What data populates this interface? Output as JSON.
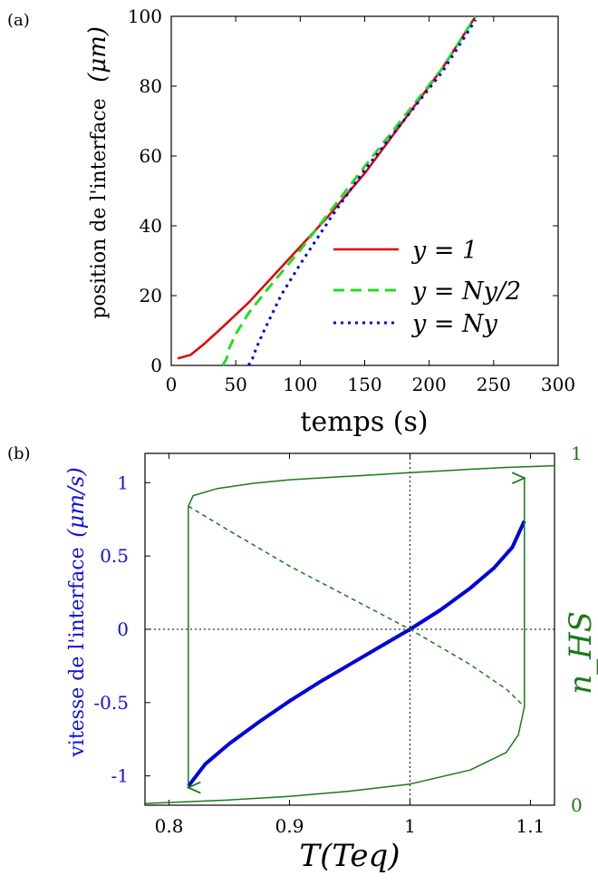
{
  "colors": {
    "red": "#e00000",
    "green_dashed": "#22dd22",
    "blue": "#0000dd",
    "dark_green": "#1a7a1a",
    "blue_axis": "#1010e0"
  },
  "panel_a": {
    "panel_label": "(a)",
    "ylabel": "position de l'interface",
    "ylabel_unit": "(μm)",
    "xlabel": "temps (s)",
    "legend": [
      "y = 1",
      "y = Ny/2",
      "y = Ny"
    ],
    "xticks": [
      "0",
      "50",
      "100",
      "150",
      "200",
      "250",
      "300"
    ],
    "yticks": [
      "0",
      "20",
      "40",
      "60",
      "80",
      "100"
    ]
  },
  "panel_b": {
    "panel_label": "(b)",
    "ylabel": "vitesse de l'interface",
    "ylabel_unit": "(μm/s)",
    "xlabel": "T(Teq)",
    "y2label": "n_HS",
    "xticks": [
      "0.8",
      "0.9",
      "1",
      "1.1"
    ],
    "yticks": [
      "1",
      "0.5",
      "0",
      "-0.5",
      "-1"
    ],
    "y2ticks": [
      "1",
      "0"
    ]
  },
  "chart_data": [
    {
      "type": "line",
      "title": "",
      "xlabel": "temps (s)",
      "ylabel": "position de l'interface (μm)",
      "xlim": [
        0,
        300
      ],
      "ylim": [
        0,
        100
      ],
      "grid": false,
      "legend_position": "bottom-right",
      "series": [
        {
          "name": "y = 1",
          "style": "solid",
          "color": "#e00000",
          "x": [
            5,
            15,
            25,
            40,
            60,
            80,
            100,
            120,
            150,
            180,
            210,
            236
          ],
          "y": [
            2,
            3,
            6,
            11,
            18,
            26,
            34,
            42,
            55,
            70,
            85,
            100
          ]
        },
        {
          "name": "y = Ny/2",
          "style": "dashed",
          "color": "#22dd22",
          "x": [
            40,
            43,
            45,
            50,
            60,
            75,
            100,
            125,
            150,
            180,
            210,
            236
          ],
          "y": [
            0,
            2,
            5,
            9,
            15,
            22,
            33,
            45,
            57,
            71,
            85,
            100
          ]
        },
        {
          "name": "y = Ny",
          "style": "dotted",
          "color": "#0000dd",
          "x": [
            60,
            63,
            66,
            72,
            85,
            100,
            125,
            150,
            180,
            210,
            236
          ],
          "y": [
            0,
            2,
            5,
            10,
            20,
            29,
            43,
            56,
            70,
            84,
            99
          ]
        }
      ]
    },
    {
      "type": "line",
      "title": "",
      "xlabel": "T(Teq)",
      "ylabel": "vitesse de l'interface (μm/s)",
      "y2label": "n_HS",
      "xlim": [
        0.78,
        1.12
      ],
      "ylim": [
        -1.2,
        1.2
      ],
      "y2lim": [
        0,
        1
      ],
      "grid": false,
      "series": [
        {
          "axis": "left",
          "style": "thick solid",
          "color": "#0000dd",
          "x": [
            0.816,
            0.83,
            0.85,
            0.875,
            0.9,
            0.925,
            0.95,
            0.975,
            1.0,
            1.025,
            1.05,
            1.07,
            1.085,
            1.095
          ],
          "y": [
            -1.07,
            -0.92,
            -0.78,
            -0.63,
            -0.49,
            -0.36,
            -0.24,
            -0.12,
            0.0,
            0.13,
            0.28,
            0.42,
            0.56,
            0.74
          ]
        },
        {
          "axis": "right",
          "style": "solid",
          "color": "#1a7a1a",
          "x": [
            0.816,
            0.82,
            0.84,
            0.87,
            0.9,
            0.95,
            1.0,
            1.05,
            1.08,
            1.12
          ],
          "y": [
            0.85,
            0.88,
            0.9,
            0.915,
            0.925,
            0.935,
            0.945,
            0.955,
            0.96,
            0.965
          ]
        },
        {
          "axis": "right",
          "style": "solid",
          "color": "#1a7a1a",
          "x": [
            0.78,
            0.85,
            0.9,
            0.95,
            1.0,
            1.05,
            1.08,
            1.09,
            1.095
          ],
          "y": [
            0.005,
            0.015,
            0.025,
            0.04,
            0.06,
            0.1,
            0.15,
            0.2,
            0.28
          ]
        },
        {
          "axis": "right",
          "style": "dashed",
          "color": "#1a7a1a",
          "x": [
            0.816,
            0.85,
            0.9,
            0.95,
            1.0,
            1.05,
            1.08,
            1.095
          ],
          "y": [
            0.85,
            0.78,
            0.68,
            0.59,
            0.5,
            0.4,
            0.33,
            0.28
          ]
        }
      ],
      "arrows": [
        {
          "from": [
            0.816,
            0.85
          ],
          "to": [
            0.816,
            0.05
          ],
          "axis": "right",
          "color": "#1a7a1a"
        },
        {
          "from": [
            1.095,
            0.28
          ],
          "to": [
            1.095,
            0.93
          ],
          "axis": "right",
          "color": "#1a7a1a"
        }
      ],
      "reference_lines": [
        {
          "x": 1.0,
          "style": "dotted"
        },
        {
          "y": 0.0,
          "style": "dotted"
        }
      ]
    }
  ]
}
